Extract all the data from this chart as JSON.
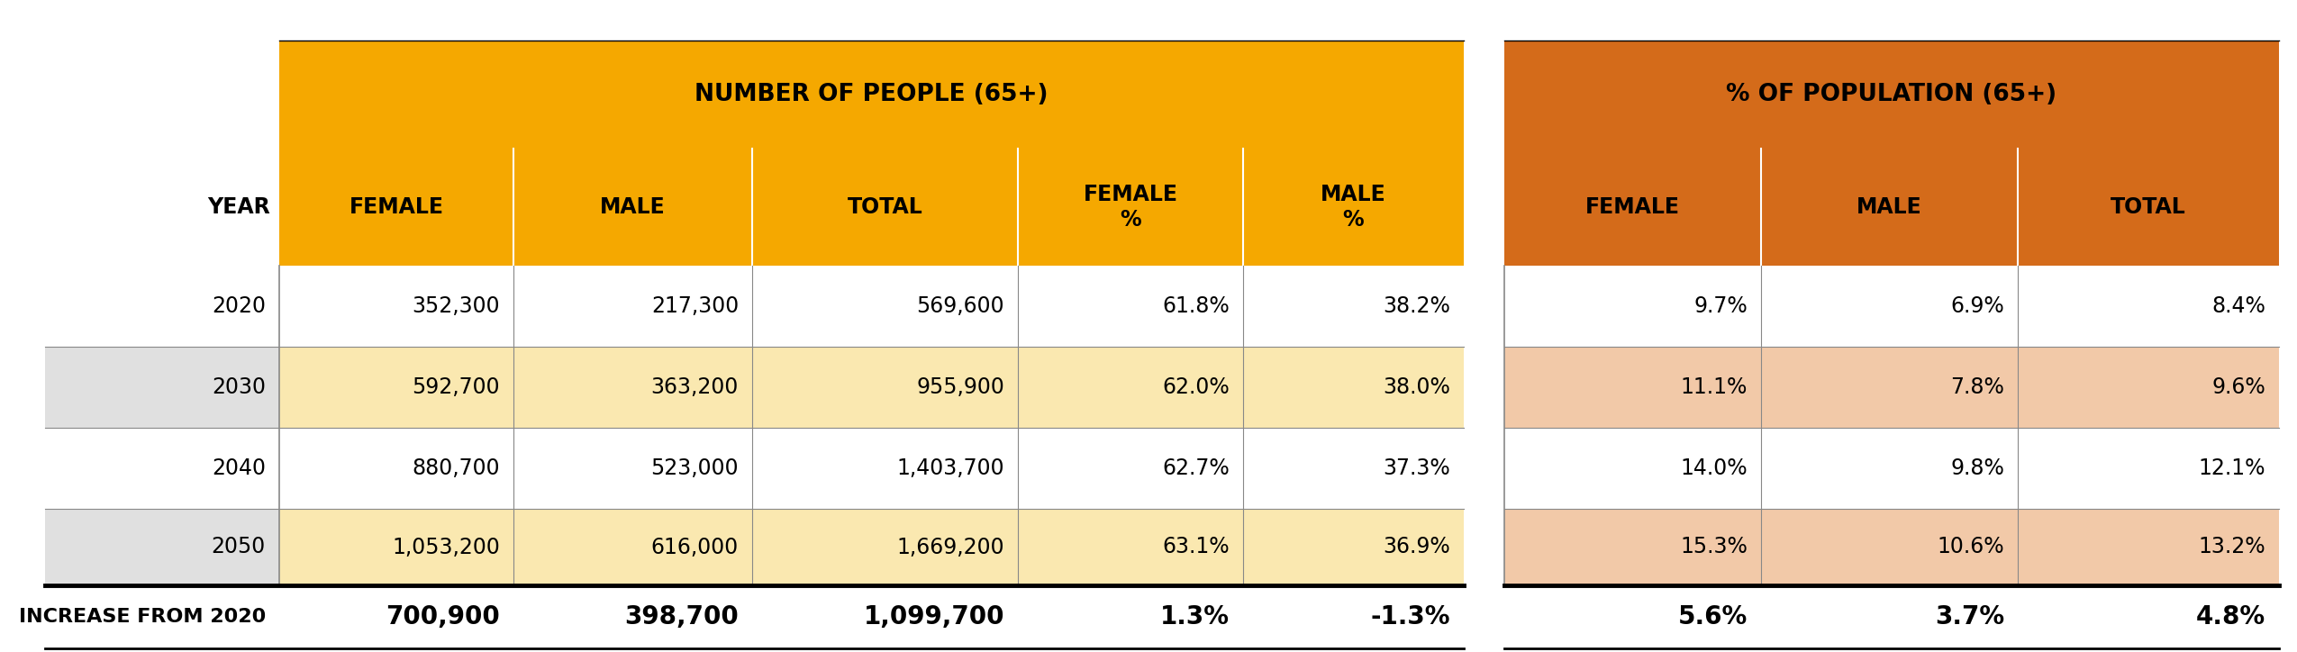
{
  "figsize": [
    25.5,
    7.24
  ],
  "dpi": 100,
  "background": "#ffffff",
  "header1_left": "NUMBER OF PEOPLE (65+)",
  "header1_right": "% OF POPULATION (65+)",
  "header1_yellow_bg": "#F5A800",
  "header1_orange_bg": "#D46B1A",
  "year_label": "YEAR",
  "rows": [
    {
      "year": "2020",
      "num_female": "352,300",
      "num_male": "217,300",
      "num_total": "569,600",
      "pct_female": "61.8%",
      "pct_male": "38.2%",
      "pop_female": "9.7%",
      "pop_male": "6.9%",
      "pop_total": "8.4%"
    },
    {
      "year": "2030",
      "num_female": "592,700",
      "num_male": "363,200",
      "num_total": "955,900",
      "pct_female": "62.0%",
      "pct_male": "38.0%",
      "pop_female": "11.1%",
      "pop_male": "7.8%",
      "pop_total": "9.6%"
    },
    {
      "year": "2040",
      "num_female": "880,700",
      "num_male": "523,000",
      "num_total": "1,403,700",
      "pct_female": "62.7%",
      "pct_male": "37.3%",
      "pop_female": "14.0%",
      "pop_male": "9.8%",
      "pop_total": "12.1%"
    },
    {
      "year": "2050",
      "num_female": "1,053,200",
      "num_male": "616,000",
      "num_total": "1,669,200",
      "pct_female": "63.1%",
      "pct_male": "36.9%",
      "pop_female": "15.3%",
      "pop_male": "10.6%",
      "pop_total": "13.2%"
    }
  ],
  "footer": {
    "year": "INCREASE FROM 2020",
    "num_female": "700,900",
    "num_male": "398,700",
    "num_total": "1,099,700",
    "pct_female": "1.3%",
    "pct_male": "-1.3%",
    "pop_female": "5.6%",
    "pop_male": "3.7%",
    "pop_total": "4.8%"
  },
  "row_year_bgs": [
    "#ffffff",
    "#e0e0e0",
    "#ffffff",
    "#e0e0e0"
  ],
  "row_num_bgs": [
    "#ffffff",
    "#FAE8B0",
    "#ffffff",
    "#FAE8B0"
  ],
  "row_pct_bgs": [
    "#ffffff",
    "#FAE8B0",
    "#ffffff",
    "#FAE8B0"
  ],
  "row_pop_bgs": [
    "#ffffff",
    "#F2C9A8",
    "#ffffff",
    "#F2C9A8"
  ],
  "text_color": "#000000",
  "divider_color": "#888888",
  "footer_divider_color": "#000000",
  "cell_data_fontsize": 17,
  "cell_header_fontsize": 17,
  "footer_fontsize": 20,
  "header1_fontsize": 19,
  "year_label_fontsize": 17
}
